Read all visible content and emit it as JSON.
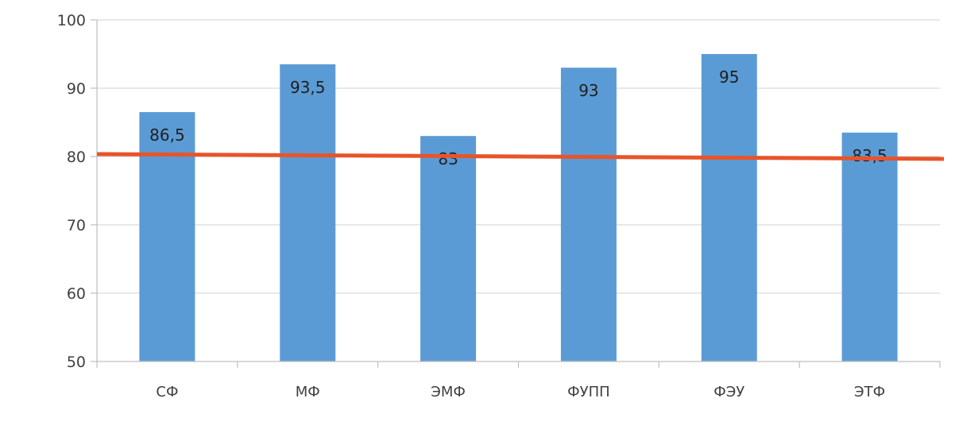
{
  "chart_data": {
    "type": "bar",
    "categories": [
      "СФ",
      "МФ",
      "ЭМФ",
      "ФУПП",
      "ФЭУ",
      "ЭТФ"
    ],
    "values": [
      86.5,
      93.5,
      83,
      93,
      95,
      83.5
    ],
    "value_labels": [
      "86,5",
      "93,5",
      "83",
      "93",
      "95",
      "83,5"
    ],
    "ylim": [
      50,
      100
    ],
    "yticks": [
      50,
      60,
      70,
      80,
      90,
      100
    ],
    "grid": true,
    "legend": "none",
    "reference_line": {
      "value": 80,
      "color": "#e8542a"
    },
    "colors": {
      "bar": "#5b9bd5",
      "grid": "#d9d9d9",
      "axis": "#bfbfbf",
      "text": "#404040",
      "label": "#1f1f1f"
    }
  }
}
